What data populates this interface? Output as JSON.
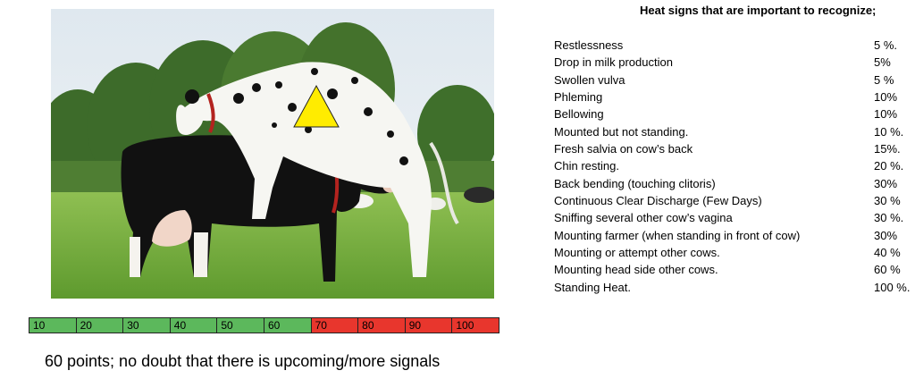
{
  "photo": {
    "alt_subject": "cow-mounting-photo",
    "marker_icon": "yellow-triangle"
  },
  "scale": {
    "cells": [
      {
        "label": "10",
        "color": "#5cb85c"
      },
      {
        "label": "20",
        "color": "#5cb85c"
      },
      {
        "label": "30",
        "color": "#5cb85c"
      },
      {
        "label": "40",
        "color": "#5cb85c"
      },
      {
        "label": "50",
        "color": "#5cb85c"
      },
      {
        "label": "60",
        "color": "#5cb85c"
      },
      {
        "label": "70",
        "color": "#e8362d"
      },
      {
        "label": "80",
        "color": "#e8362d"
      },
      {
        "label": "90",
        "color": "#e8362d"
      },
      {
        "label": "100",
        "color": "#e8362d"
      }
    ]
  },
  "caption": "60 points; no doubt that there is upcoming/more signals",
  "signs": {
    "title": "Heat signs that are important to recognize;",
    "items": [
      {
        "sign": "Restlessness",
        "value": "5 %."
      },
      {
        "sign": "Drop in milk production",
        "value": "5%"
      },
      {
        "sign": "Swollen vulva",
        "value": "5 %"
      },
      {
        "sign": "Phleming",
        "value": "10%"
      },
      {
        "sign": "Bellowing",
        "value": "10%"
      },
      {
        "sign": "Mounted but not standing.",
        "value": "10 %."
      },
      {
        "sign": "Fresh salvia on cow’s back",
        "value": "15%."
      },
      {
        "sign": "Chin resting.",
        "value": "20 %."
      },
      {
        "sign": "Back bending (touching clitoris)",
        "value": "30%"
      },
      {
        "sign": "Continuous Clear Discharge (Few Days)",
        "value": "30 %"
      },
      {
        "sign": "Sniffing several other cow’s vagina",
        "value": "30 %."
      },
      {
        "sign": "Mounting farmer (when standing in front of cow)",
        "value": "30%"
      },
      {
        "sign": "Mounting or attempt other cows.",
        "value": "40 %"
      },
      {
        "sign": "Mounting head side other cows.",
        "value": "60 %"
      },
      {
        "sign": "Standing Heat.",
        "value": "100 %."
      }
    ]
  }
}
